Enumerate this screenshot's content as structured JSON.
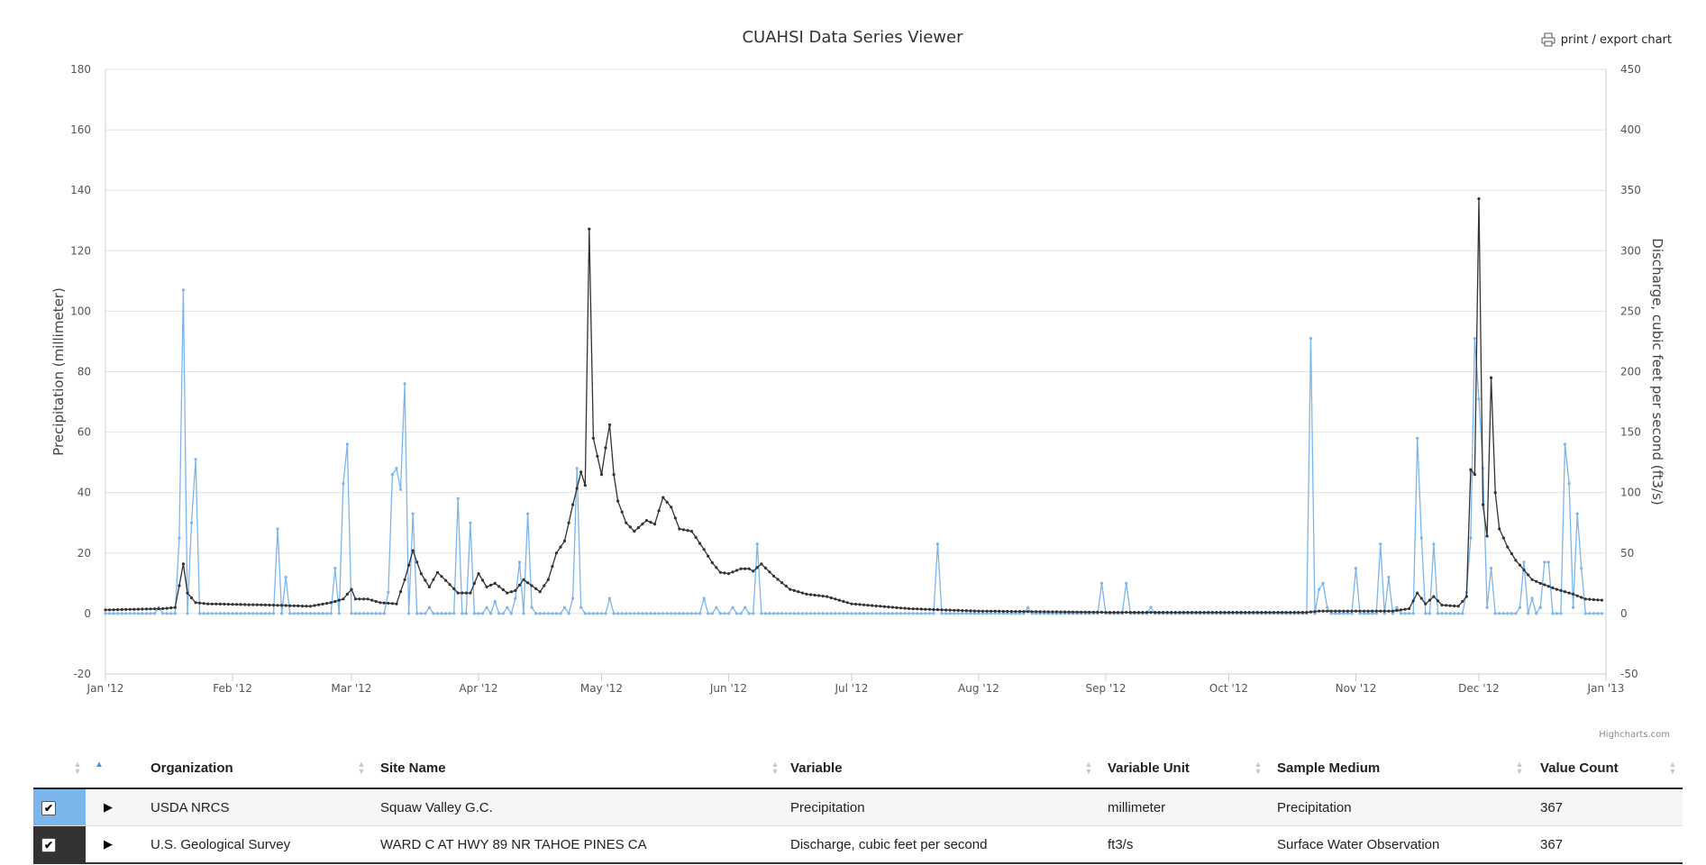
{
  "chart": {
    "title": "CUAHSI Data Series Viewer",
    "export_label": "print / export chart",
    "credits": "Highcharts.com"
  },
  "chart_data": {
    "type": "line",
    "title": "CUAHSI Data Series Viewer",
    "x_ticks": [
      "Jan '12",
      "Feb '12",
      "Mar '12",
      "Apr '12",
      "May '12",
      "Jun '12",
      "Jul '12",
      "Aug '12",
      "Sep '12",
      "Oct '12",
      "Nov '12",
      "Dec '12",
      "Jan '13"
    ],
    "x_tick_dates": [
      "2012-01-01",
      "2012-02-01",
      "2012-03-01",
      "2012-04-01",
      "2012-05-01",
      "2012-06-01",
      "2012-07-01",
      "2012-08-01",
      "2012-09-01",
      "2012-10-01",
      "2012-11-01",
      "2012-12-01",
      "2013-01-01"
    ],
    "y_left": {
      "label": "Precipitation (millimeter)",
      "ticks": [
        180,
        160,
        140,
        120,
        100,
        80,
        60,
        40,
        20,
        0,
        -20
      ],
      "range": [
        -20,
        180
      ]
    },
    "y_right": {
      "label": "Discharge, cubic feet per second (ft3/s)",
      "ticks": [
        450,
        400,
        350,
        300,
        250,
        200,
        150,
        100,
        50,
        0,
        -50
      ],
      "range": [
        -50,
        450
      ]
    },
    "grid": true,
    "series": [
      {
        "name": "Precipitation",
        "axis": "left",
        "color": "#7cb5ec",
        "default": 0,
        "points": [
          [
            "2012-01-14",
            2
          ],
          [
            "2012-01-19",
            25
          ],
          [
            "2012-01-20",
            107
          ],
          [
            "2012-01-22",
            30
          ],
          [
            "2012-01-23",
            51
          ],
          [
            "2012-02-12",
            28
          ],
          [
            "2012-02-14",
            12
          ],
          [
            "2012-02-26",
            15
          ],
          [
            "2012-02-28",
            43
          ],
          [
            "2012-02-29",
            56
          ],
          [
            "2012-03-10",
            7
          ],
          [
            "2012-03-11",
            46
          ],
          [
            "2012-03-12",
            48
          ],
          [
            "2012-03-13",
            41
          ],
          [
            "2012-03-14",
            76
          ],
          [
            "2012-03-16",
            33
          ],
          [
            "2012-03-20",
            2
          ],
          [
            "2012-03-27",
            38
          ],
          [
            "2012-03-30",
            30
          ],
          [
            "2012-04-03",
            2
          ],
          [
            "2012-04-05",
            4
          ],
          [
            "2012-04-08",
            2
          ],
          [
            "2012-04-10",
            5
          ],
          [
            "2012-04-11",
            17
          ],
          [
            "2012-04-13",
            33
          ],
          [
            "2012-04-14",
            2
          ],
          [
            "2012-04-22",
            2
          ],
          [
            "2012-04-24",
            5
          ],
          [
            "2012-04-25",
            48
          ],
          [
            "2012-04-26",
            2
          ],
          [
            "2012-05-03",
            5
          ],
          [
            "2012-05-26",
            5
          ],
          [
            "2012-05-29",
            2
          ],
          [
            "2012-06-02",
            2
          ],
          [
            "2012-06-05",
            2
          ],
          [
            "2012-06-08",
            23
          ],
          [
            "2012-07-22",
            23
          ],
          [
            "2012-08-13",
            2
          ],
          [
            "2012-08-31",
            10
          ],
          [
            "2012-09-06",
            10
          ],
          [
            "2012-09-12",
            2
          ],
          [
            "2012-10-21",
            91
          ],
          [
            "2012-10-23",
            8
          ],
          [
            "2012-10-24",
            10
          ],
          [
            "2012-10-25",
            2
          ],
          [
            "2012-11-01",
            15
          ],
          [
            "2012-11-07",
            23
          ],
          [
            "2012-11-09",
            12
          ],
          [
            "2012-11-11",
            2
          ],
          [
            "2012-11-16",
            58
          ],
          [
            "2012-11-17",
            25
          ],
          [
            "2012-11-20",
            23
          ],
          [
            "2012-11-28",
            7
          ],
          [
            "2012-11-29",
            25
          ],
          [
            "2012-11-30",
            91
          ],
          [
            "2012-12-01",
            71
          ],
          [
            "2012-12-02",
            48
          ],
          [
            "2012-12-03",
            2
          ],
          [
            "2012-12-04",
            15
          ],
          [
            "2012-12-11",
            2
          ],
          [
            "2012-12-12",
            17
          ],
          [
            "2012-12-14",
            5
          ],
          [
            "2012-12-16",
            2
          ],
          [
            "2012-12-17",
            17
          ],
          [
            "2012-12-18",
            17
          ],
          [
            "2012-12-22",
            56
          ],
          [
            "2012-12-23",
            43
          ],
          [
            "2012-12-24",
            2
          ],
          [
            "2012-12-25",
            33
          ],
          [
            "2012-12-26",
            15
          ]
        ]
      },
      {
        "name": "Discharge, cubic feet per second",
        "axis": "right",
        "color": "#333333",
        "points": [
          [
            "2012-01-01",
            3
          ],
          [
            "2012-01-15",
            4
          ],
          [
            "2012-01-18",
            5
          ],
          [
            "2012-01-20",
            41
          ],
          [
            "2012-01-21",
            17
          ],
          [
            "2012-01-23",
            9
          ],
          [
            "2012-01-26",
            8
          ],
          [
            "2012-02-10",
            7
          ],
          [
            "2012-02-20",
            6
          ],
          [
            "2012-02-25",
            9
          ],
          [
            "2012-02-28",
            12
          ],
          [
            "2012-03-01",
            20
          ],
          [
            "2012-03-02",
            12
          ],
          [
            "2012-03-05",
            12
          ],
          [
            "2012-03-08",
            9
          ],
          [
            "2012-03-12",
            8
          ],
          [
            "2012-03-14",
            28
          ],
          [
            "2012-03-16",
            52
          ],
          [
            "2012-03-18",
            33
          ],
          [
            "2012-03-20",
            22
          ],
          [
            "2012-03-22",
            34
          ],
          [
            "2012-03-25",
            24
          ],
          [
            "2012-03-27",
            17
          ],
          [
            "2012-03-30",
            17
          ],
          [
            "2012-04-01",
            33
          ],
          [
            "2012-04-03",
            22
          ],
          [
            "2012-04-05",
            25
          ],
          [
            "2012-04-08",
            17
          ],
          [
            "2012-04-10",
            19
          ],
          [
            "2012-04-12",
            28
          ],
          [
            "2012-04-14",
            23
          ],
          [
            "2012-04-16",
            18
          ],
          [
            "2012-04-18",
            28
          ],
          [
            "2012-04-20",
            50
          ],
          [
            "2012-04-22",
            60
          ],
          [
            "2012-04-24",
            90
          ],
          [
            "2012-04-26",
            117
          ],
          [
            "2012-04-27",
            106
          ],
          [
            "2012-04-28",
            318
          ],
          [
            "2012-04-29",
            145
          ],
          [
            "2012-04-30",
            130
          ],
          [
            "2012-05-01",
            115
          ],
          [
            "2012-05-02",
            137
          ],
          [
            "2012-05-03",
            156
          ],
          [
            "2012-05-04",
            115
          ],
          [
            "2012-05-05",
            93
          ],
          [
            "2012-05-07",
            75
          ],
          [
            "2012-05-09",
            68
          ],
          [
            "2012-05-12",
            77
          ],
          [
            "2012-05-14",
            74
          ],
          [
            "2012-05-16",
            96
          ],
          [
            "2012-05-18",
            88
          ],
          [
            "2012-05-20",
            70
          ],
          [
            "2012-05-23",
            68
          ],
          [
            "2012-05-26",
            53
          ],
          [
            "2012-05-28",
            42
          ],
          [
            "2012-05-30",
            34
          ],
          [
            "2012-06-01",
            33
          ],
          [
            "2012-06-04",
            37
          ],
          [
            "2012-06-06",
            37
          ],
          [
            "2012-06-07",
            35
          ],
          [
            "2012-06-09",
            41
          ],
          [
            "2012-06-12",
            31
          ],
          [
            "2012-06-16",
            20
          ],
          [
            "2012-06-20",
            16
          ],
          [
            "2012-06-25",
            14
          ],
          [
            "2012-07-01",
            8
          ],
          [
            "2012-07-15",
            4
          ],
          [
            "2012-08-01",
            2
          ],
          [
            "2012-09-01",
            1
          ],
          [
            "2012-10-20",
            1
          ],
          [
            "2012-10-23",
            2
          ],
          [
            "2012-11-10",
            2
          ],
          [
            "2012-11-14",
            4
          ],
          [
            "2012-11-16",
            17
          ],
          [
            "2012-11-18",
            8
          ],
          [
            "2012-11-20",
            14
          ],
          [
            "2012-11-22",
            7
          ],
          [
            "2012-11-26",
            6
          ],
          [
            "2012-11-28",
            14
          ],
          [
            "2012-11-29",
            119
          ],
          [
            "2012-11-30",
            115
          ],
          [
            "2012-12-01",
            343
          ],
          [
            "2012-12-02",
            90
          ],
          [
            "2012-12-03",
            64
          ],
          [
            "2012-12-04",
            195
          ],
          [
            "2012-12-05",
            100
          ],
          [
            "2012-12-06",
            70
          ],
          [
            "2012-12-08",
            55
          ],
          [
            "2012-12-10",
            44
          ],
          [
            "2012-12-12",
            36
          ],
          [
            "2012-12-14",
            28
          ],
          [
            "2012-12-16",
            25
          ],
          [
            "2012-12-20",
            20
          ],
          [
            "2012-12-24",
            16
          ],
          [
            "2012-12-27",
            12
          ],
          [
            "2012-12-31",
            11
          ]
        ]
      }
    ]
  },
  "table": {
    "columns": [
      {
        "key": "organization",
        "label": "Organization"
      },
      {
        "key": "site",
        "label": "Site Name"
      },
      {
        "key": "variable",
        "label": "Variable"
      },
      {
        "key": "unit",
        "label": "Variable Unit"
      },
      {
        "key": "medium",
        "label": "Sample Medium"
      },
      {
        "key": "count",
        "label": "Value Count"
      }
    ],
    "rows": [
      {
        "color": "#7cb5ec",
        "checked": "✔",
        "organization": "USDA NRCS",
        "site": "Squaw Valley G.C.",
        "variable": "Precipitation",
        "unit": "millimeter",
        "medium": "Precipitation",
        "count": "367"
      },
      {
        "color": "#333333",
        "checked": "✔",
        "organization": "U.S. Geological Survey",
        "site": "WARD C AT HWY 89 NR TAHOE PINES CA",
        "variable": "Discharge, cubic feet per second",
        "unit": "ft3/s",
        "medium": "Surface Water Observation",
        "count": "367"
      }
    ]
  }
}
